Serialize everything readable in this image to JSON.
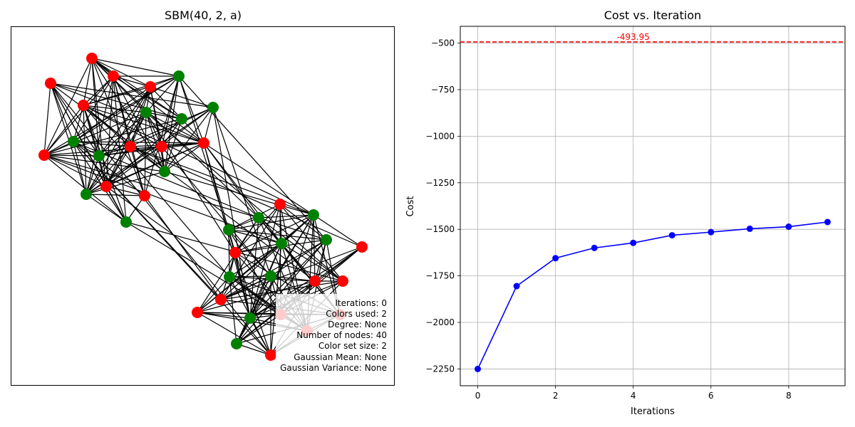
{
  "left_panel": {
    "title": "SBM(40, 2, a)",
    "info": [
      {
        "label": "Iterations",
        "value": "0"
      },
      {
        "label": "Colors used",
        "value": "2"
      },
      {
        "label": "Degree",
        "value": "None"
      },
      {
        "label": "Number of nodes",
        "value": "40"
      },
      {
        "label": "Color set size",
        "value": "2"
      },
      {
        "label": "Gaussian Mean",
        "value": "None"
      },
      {
        "label": "Gaussian Variance",
        "value": "None"
      }
    ],
    "colors": {
      "node_a": "#ff0000",
      "node_b": "#008000",
      "edge": "#000000"
    }
  },
  "chart_data": {
    "type": "line",
    "title": "Cost vs. Iteration",
    "xlabel": "Iterations",
    "ylabel": "Cost",
    "x": [
      0,
      1,
      2,
      3,
      4,
      5,
      6,
      7,
      8,
      9
    ],
    "series": [
      {
        "values": [
          -2250,
          -1805,
          -1655,
          -1600,
          -1573,
          -1532,
          -1515,
          -1497,
          -1486,
          -1461
        ],
        "color": "#0000ff"
      }
    ],
    "reference_line": {
      "value": -493.95,
      "label": "-493.95",
      "color": "#ff0000",
      "style": "dashed"
    },
    "xlim": [
      -0.45,
      9.45
    ],
    "ylim": [
      -2340,
      -410
    ],
    "xticks": [
      0,
      2,
      4,
      6,
      8
    ],
    "yticks": [
      -2250,
      -2000,
      -1750,
      -1500,
      -1250,
      -1000,
      -750,
      -500
    ],
    "ytick_labels": [
      "−2250",
      "−2000",
      "−1750",
      "−1500",
      "−1250",
      "−1000",
      "−750",
      "−500"
    ],
    "grid": true
  }
}
